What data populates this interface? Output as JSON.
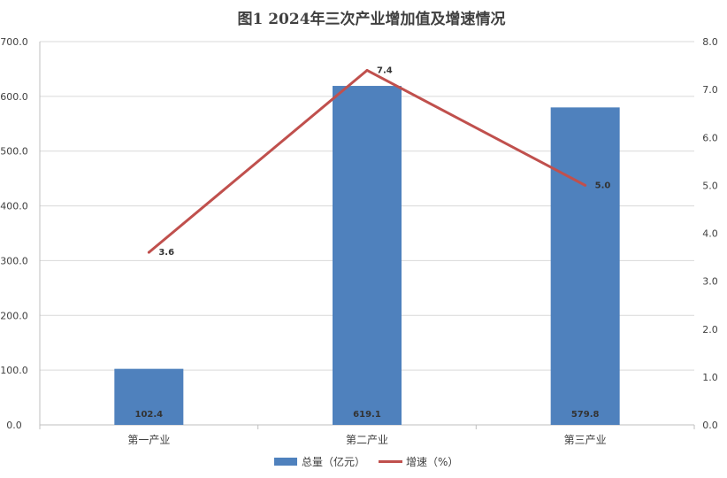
{
  "chart_data": {
    "type": "bar",
    "title": "图1   2024年三次产业增加值及增速情况",
    "categories": [
      "第一产业",
      "第二产业",
      "第三产业"
    ],
    "series": [
      {
        "name": "总量（亿元）",
        "type": "bar",
        "axis": "left",
        "values": [
          102.4,
          619.1,
          579.8
        ],
        "value_labels": [
          "102.4",
          "619.1",
          "579.8"
        ],
        "color": "#4F81BD"
      },
      {
        "name": "增速（%）",
        "type": "line",
        "axis": "right",
        "values": [
          3.6,
          7.4,
          5.0
        ],
        "value_labels": [
          "3.6",
          "7.4",
          "5.0"
        ],
        "color": "#C0504D"
      }
    ],
    "ylim_left": [
      0,
      700
    ],
    "ylim_right": [
      0,
      8
    ],
    "left_ticks": [
      "0.0",
      "100.0",
      "200.0",
      "300.0",
      "400.0",
      "500.0",
      "600.0",
      "700.0"
    ],
    "right_ticks": [
      "0.0",
      "1.0",
      "2.0",
      "3.0",
      "4.0",
      "5.0",
      "6.0",
      "7.0",
      "8.0"
    ],
    "grid": true,
    "legend_position": "bottom"
  }
}
